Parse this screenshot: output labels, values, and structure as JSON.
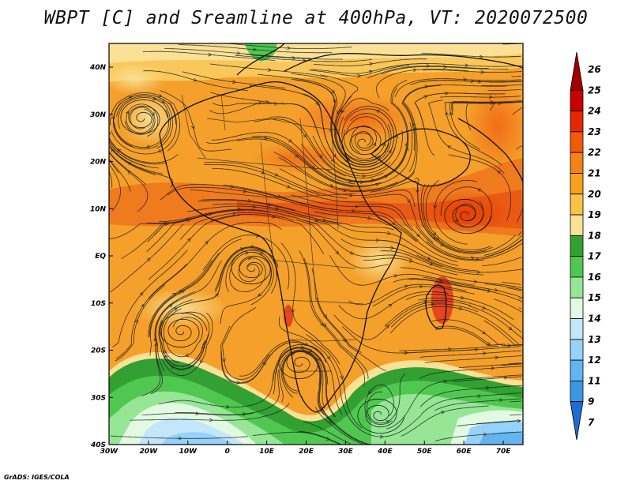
{
  "title": "WBPT [C] and Sreamline at 400hPa, VT: 2020072500",
  "credit": "GrADS: IGES/COLA",
  "map": {
    "lon_ticks": [
      "30W",
      "20W",
      "10W",
      "0",
      "10E",
      "20E",
      "30E",
      "40E",
      "50E",
      "60E",
      "70E"
    ],
    "lat_ticks": [
      "40N",
      "30N",
      "20N",
      "10N",
      "EQ",
      "10S",
      "20S",
      "30S",
      "40S"
    ]
  },
  "colorbar": {
    "levels": [
      "26",
      "25",
      "24",
      "23",
      "22",
      "21",
      "20",
      "19",
      "18",
      "17",
      "16",
      "15",
      "14",
      "13",
      "12",
      "11",
      "9",
      "7"
    ],
    "colors": [
      "#a00000",
      "#c80000",
      "#e62800",
      "#f05a0a",
      "#f58214",
      "#faa01e",
      "#fac346",
      "#fae196",
      "#32a032",
      "#50c850",
      "#96e696",
      "#e1fae1",
      "#c3e6fa",
      "#96d2fa",
      "#64b4f0",
      "#3c96e6",
      "#1e6ed2"
    ]
  }
}
